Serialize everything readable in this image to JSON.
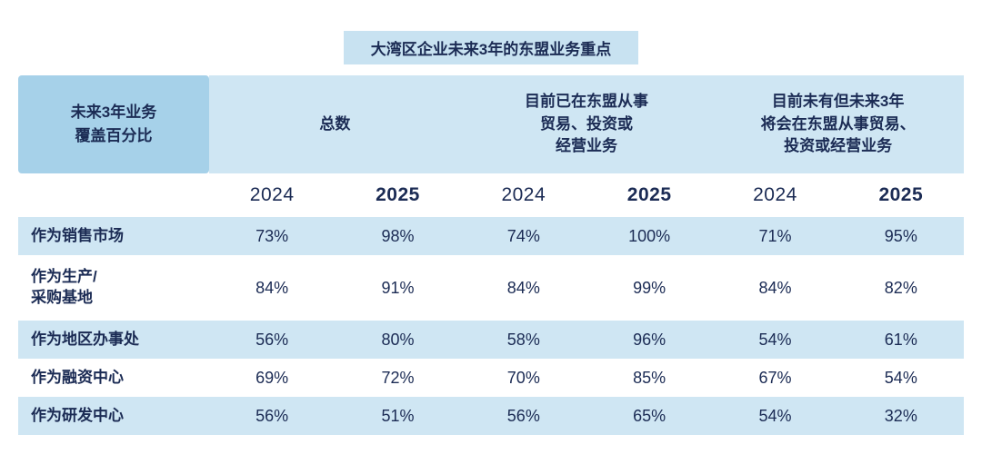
{
  "title": "大湾区企业未来3年的东盟业务重点",
  "colors": {
    "band_light": "#cfe6f3",
    "band_dark": "#a6d1e9",
    "title_bg": "#c8e2f1",
    "text_navy": "#1b2b54"
  },
  "chart_data": {
    "type": "table",
    "title": "大湾区企业未来3年的东盟业务重点",
    "row_header": "未来3年业务\n覆盖百分比",
    "column_groups": [
      "总数",
      "目前已在东盟从事\n贸易、投资或\n经营业务",
      "目前未有但未来3年\n将会在东盟从事贸易、\n投资或经营业务"
    ],
    "years": [
      "2024",
      "2025"
    ],
    "rows": [
      {
        "label": "作为销售市场",
        "values": [
          "73%",
          "98%",
          "74%",
          "100%",
          "71%",
          "95%"
        ]
      },
      {
        "label": "作为生产/\n采购基地",
        "values": [
          "84%",
          "91%",
          "84%",
          "99%",
          "84%",
          "82%"
        ]
      },
      {
        "label": "作为地区办事处",
        "values": [
          "56%",
          "80%",
          "58%",
          "96%",
          "54%",
          "61%"
        ]
      },
      {
        "label": "作为融资中心",
        "values": [
          "69%",
          "72%",
          "70%",
          "85%",
          "67%",
          "54%"
        ]
      },
      {
        "label": "作为研发中心",
        "values": [
          "56%",
          "51%",
          "56%",
          "65%",
          "54%",
          "32%"
        ]
      }
    ]
  }
}
